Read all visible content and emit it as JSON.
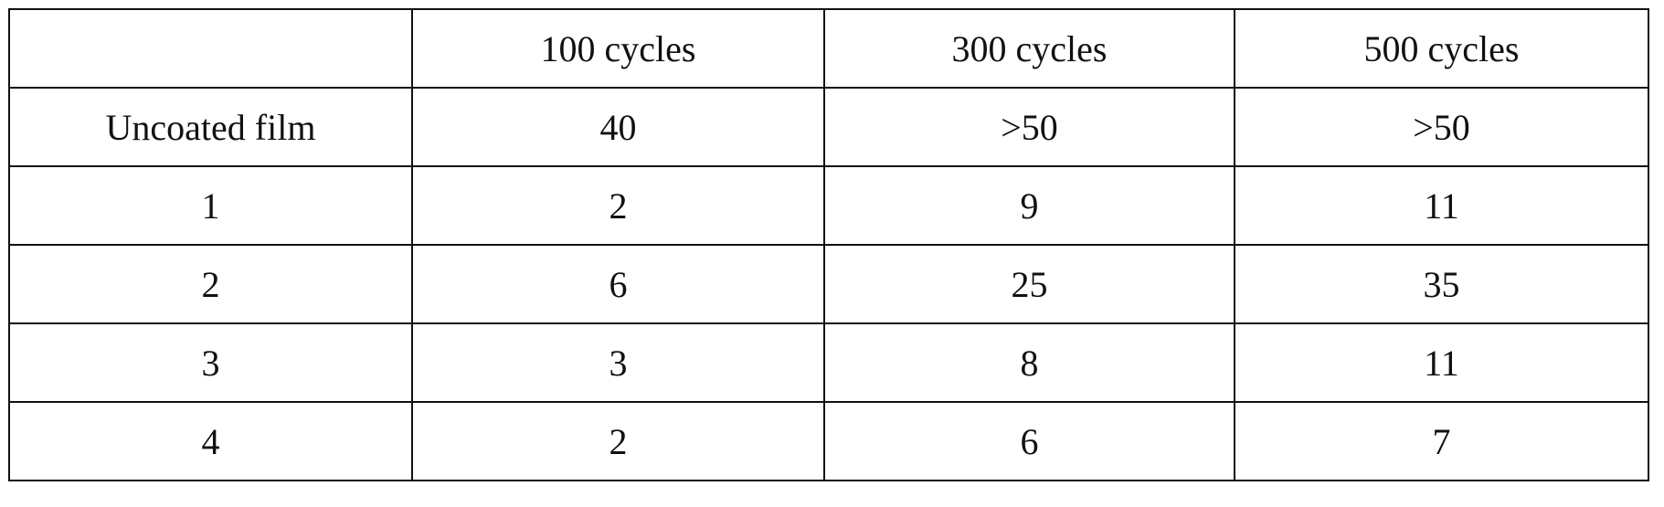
{
  "table": {
    "header": [
      "100 cycles",
      "300 cycles",
      "500 cycles"
    ],
    "rows": [
      [
        "Uncoated film",
        "40",
        ">50",
        ">50"
      ],
      [
        "1",
        "2",
        "9",
        "11"
      ],
      [
        "2",
        "6",
        "25",
        "35"
      ],
      [
        "3",
        "3",
        "8",
        "11"
      ],
      [
        "4",
        "2",
        "6",
        "7"
      ]
    ]
  }
}
